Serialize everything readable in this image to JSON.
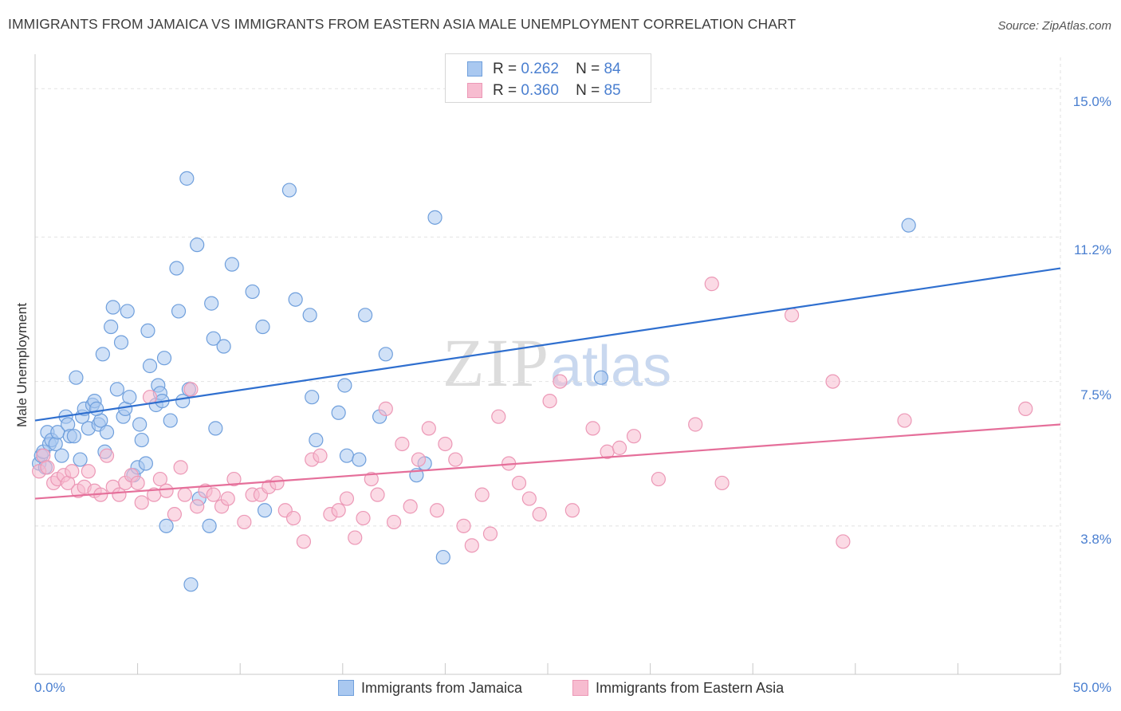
{
  "title": "IMMIGRANTS FROM JAMAICA VS IMMIGRANTS FROM EASTERN ASIA MALE UNEMPLOYMENT CORRELATION CHART",
  "source": "Source: ZipAtlas.com",
  "watermark": {
    "zip": "ZIP",
    "atlas": "atlas"
  },
  "colors": {
    "blue_fill": "#a9c8f0",
    "blue_stroke": "#6f9fdc",
    "blue_line": "#2f6fcf",
    "pink_fill": "#f7bcd0",
    "pink_stroke": "#ec98b6",
    "pink_line": "#e56f9a",
    "tick_text": "#4a7fd0",
    "grid": "#e2e2e2"
  },
  "legend": {
    "rows": [
      {
        "r_label": "R =",
        "r_value": "0.262",
        "n_label": "N =",
        "n_value": "84"
      },
      {
        "r_label": "R =",
        "r_value": "0.360",
        "n_label": "N =",
        "n_value": "85"
      }
    ]
  },
  "chart_data": {
    "type": "scatter",
    "title": "IMMIGRANTS FROM JAMAICA VS IMMIGRANTS FROM EASTERN ASIA MALE UNEMPLOYMENT CORRELATION CHART",
    "xlabel": "",
    "ylabel": "Male Unemployment",
    "xlim": [
      0,
      50
    ],
    "ylim": [
      0,
      15.8
    ],
    "x_tick_labels": [
      "0.0%",
      "50.0%"
    ],
    "y_ticks": [
      3.8,
      7.5,
      11.2,
      15.0
    ],
    "y_tick_labels": [
      "3.8%",
      "7.5%",
      "11.2%",
      "15.0%"
    ],
    "grid": true,
    "legend_position": "top-center",
    "series": [
      {
        "name": "Immigrants from Jamaica",
        "color": "#6f9fdc",
        "R": 0.262,
        "N": 84,
        "trend": {
          "x": [
            0,
            50
          ],
          "y": [
            6.5,
            10.4
          ]
        },
        "points": [
          [
            0.2,
            5.4
          ],
          [
            0.3,
            5.6
          ],
          [
            0.4,
            5.7
          ],
          [
            0.5,
            5.3
          ],
          [
            0.6,
            6.2
          ],
          [
            0.7,
            5.9
          ],
          [
            0.8,
            6.0
          ],
          [
            1.0,
            5.9
          ],
          [
            1.1,
            6.2
          ],
          [
            1.3,
            5.6
          ],
          [
            1.5,
            6.6
          ],
          [
            1.6,
            6.4
          ],
          [
            1.7,
            6.1
          ],
          [
            1.9,
            6.1
          ],
          [
            2.0,
            7.6
          ],
          [
            2.2,
            5.5
          ],
          [
            2.3,
            6.6
          ],
          [
            2.4,
            6.8
          ],
          [
            2.6,
            6.3
          ],
          [
            2.8,
            6.9
          ],
          [
            2.9,
            7.0
          ],
          [
            3.1,
            6.4
          ],
          [
            3.2,
            6.5
          ],
          [
            3.3,
            8.2
          ],
          [
            3.4,
            5.7
          ],
          [
            3.5,
            6.2
          ],
          [
            3.7,
            8.9
          ],
          [
            3.8,
            9.4
          ],
          [
            4.0,
            7.3
          ],
          [
            4.2,
            8.5
          ],
          [
            4.3,
            6.6
          ],
          [
            4.4,
            6.8
          ],
          [
            4.5,
            9.3
          ],
          [
            4.6,
            7.1
          ],
          [
            4.8,
            5.1
          ],
          [
            5.0,
            5.3
          ],
          [
            5.1,
            6.4
          ],
          [
            5.2,
            6.0
          ],
          [
            5.4,
            5.4
          ],
          [
            5.5,
            8.8
          ],
          [
            5.6,
            7.9
          ],
          [
            5.9,
            6.9
          ],
          [
            6.0,
            7.4
          ],
          [
            6.1,
            7.2
          ],
          [
            6.3,
            8.1
          ],
          [
            6.4,
            3.8
          ],
          [
            6.6,
            6.5
          ],
          [
            6.9,
            10.4
          ],
          [
            7.0,
            9.3
          ],
          [
            7.2,
            7.0
          ],
          [
            7.4,
            12.7
          ],
          [
            7.5,
            7.3
          ],
          [
            7.6,
            2.3
          ],
          [
            7.9,
            11.0
          ],
          [
            8.0,
            4.5
          ],
          [
            8.5,
            3.8
          ],
          [
            8.6,
            9.5
          ],
          [
            8.7,
            8.6
          ],
          [
            8.8,
            6.3
          ],
          [
            9.2,
            8.4
          ],
          [
            9.6,
            10.5
          ],
          [
            10.6,
            9.8
          ],
          [
            11.1,
            8.9
          ],
          [
            11.2,
            4.2
          ],
          [
            12.4,
            12.4
          ],
          [
            12.7,
            9.6
          ],
          [
            13.4,
            9.2
          ],
          [
            13.5,
            7.1
          ],
          [
            13.7,
            6.0
          ],
          [
            14.8,
            6.7
          ],
          [
            15.1,
            7.4
          ],
          [
            15.2,
            5.6
          ],
          [
            15.8,
            5.5
          ],
          [
            16.1,
            9.2
          ],
          [
            16.8,
            6.6
          ],
          [
            17.1,
            8.2
          ],
          [
            18.6,
            5.1
          ],
          [
            19.0,
            5.4
          ],
          [
            19.5,
            11.7
          ],
          [
            19.9,
            3.0
          ],
          [
            27.6,
            7.6
          ],
          [
            42.6,
            11.5
          ],
          [
            6.2,
            7.0
          ],
          [
            3.0,
            6.8
          ]
        ]
      },
      {
        "name": "Immigrants from Eastern Asia",
        "color": "#ec98b6",
        "R": 0.36,
        "N": 85,
        "trend": {
          "x": [
            0,
            50
          ],
          "y": [
            4.5,
            6.4
          ]
        },
        "points": [
          [
            0.2,
            5.2
          ],
          [
            0.4,
            5.6
          ],
          [
            0.6,
            5.3
          ],
          [
            0.9,
            4.9
          ],
          [
            1.1,
            5.0
          ],
          [
            1.4,
            5.1
          ],
          [
            1.6,
            4.9
          ],
          [
            1.8,
            5.2
          ],
          [
            2.1,
            4.7
          ],
          [
            2.4,
            4.8
          ],
          [
            2.6,
            5.2
          ],
          [
            2.9,
            4.7
          ],
          [
            3.2,
            4.6
          ],
          [
            3.5,
            5.6
          ],
          [
            3.8,
            4.8
          ],
          [
            4.1,
            4.6
          ],
          [
            4.4,
            4.9
          ],
          [
            4.7,
            5.1
          ],
          [
            5.0,
            4.9
          ],
          [
            5.2,
            4.4
          ],
          [
            5.6,
            7.1
          ],
          [
            5.8,
            4.6
          ],
          [
            6.1,
            5.0
          ],
          [
            6.4,
            4.7
          ],
          [
            6.8,
            4.1
          ],
          [
            7.1,
            5.3
          ],
          [
            7.3,
            4.6
          ],
          [
            7.6,
            7.3
          ],
          [
            7.9,
            4.3
          ],
          [
            8.3,
            4.7
          ],
          [
            8.7,
            4.6
          ],
          [
            9.1,
            4.3
          ],
          [
            9.4,
            4.5
          ],
          [
            9.7,
            5.0
          ],
          [
            10.2,
            3.9
          ],
          [
            10.6,
            4.6
          ],
          [
            11.0,
            4.6
          ],
          [
            11.4,
            4.8
          ],
          [
            11.8,
            4.9
          ],
          [
            12.2,
            4.2
          ],
          [
            12.6,
            4.0
          ],
          [
            13.1,
            3.4
          ],
          [
            13.5,
            5.5
          ],
          [
            13.9,
            5.6
          ],
          [
            14.4,
            4.1
          ],
          [
            14.8,
            4.2
          ],
          [
            15.2,
            4.5
          ],
          [
            15.6,
            3.5
          ],
          [
            16.0,
            4.0
          ],
          [
            16.4,
            5.0
          ],
          [
            16.7,
            4.6
          ],
          [
            17.1,
            6.8
          ],
          [
            17.5,
            3.9
          ],
          [
            17.9,
            5.9
          ],
          [
            18.3,
            4.3
          ],
          [
            18.7,
            5.5
          ],
          [
            19.2,
            6.3
          ],
          [
            19.6,
            4.2
          ],
          [
            20.0,
            5.9
          ],
          [
            20.5,
            5.5
          ],
          [
            20.9,
            3.8
          ],
          [
            21.3,
            3.3
          ],
          [
            21.8,
            4.6
          ],
          [
            22.2,
            3.6
          ],
          [
            22.6,
            6.6
          ],
          [
            23.1,
            5.4
          ],
          [
            23.6,
            4.9
          ],
          [
            24.1,
            4.5
          ],
          [
            24.6,
            4.1
          ],
          [
            25.1,
            7.0
          ],
          [
            25.6,
            7.5
          ],
          [
            26.2,
            4.2
          ],
          [
            27.2,
            6.3
          ],
          [
            27.9,
            5.7
          ],
          [
            28.5,
            5.8
          ],
          [
            29.2,
            6.1
          ],
          [
            30.4,
            5.0
          ],
          [
            32.2,
            6.4
          ],
          [
            33.0,
            10.0
          ],
          [
            33.5,
            4.9
          ],
          [
            36.9,
            9.2
          ],
          [
            38.9,
            7.5
          ],
          [
            39.4,
            3.4
          ],
          [
            42.4,
            6.5
          ],
          [
            48.3,
            6.8
          ]
        ]
      }
    ]
  },
  "bottom_legend": [
    {
      "label": "Immigrants from Jamaica"
    },
    {
      "label": "Immigrants from Eastern Asia"
    }
  ]
}
